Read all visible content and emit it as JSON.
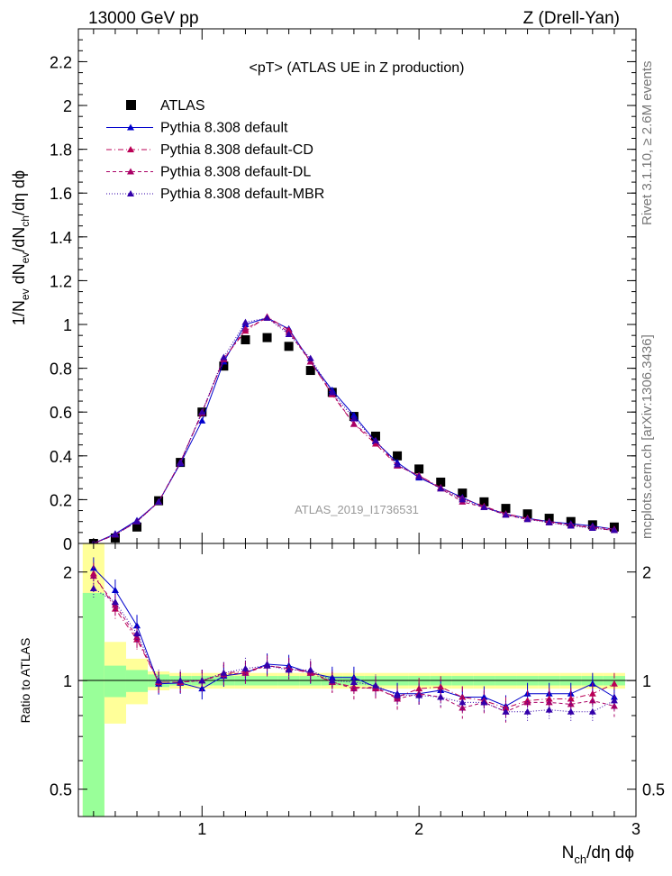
{
  "header": {
    "left": "13000 GeV pp",
    "right": "Z (Drell-Yan)"
  },
  "side_labels": {
    "top": "Rivet 3.1.10, ≥ 2.6M events",
    "bottom": "mcplots.cern.ch [arXiv:1306.3436]"
  },
  "chart_data": {
    "type": "scatter",
    "title": "<pT> (ATLAS UE in Z production)",
    "watermark": "ATLAS_2019_I1736531",
    "ylabel_main": "1/N_ev dN_ev/dN_ch/dη dϕ",
    "ylabel_ratio": "Ratio to ATLAS",
    "xlabel": "N_ch/dη dϕ",
    "xlim": [
      0.43,
      3.0
    ],
    "ylim_main": [
      0,
      2.35
    ],
    "ylim_ratio": [
      0.42,
      2.4
    ],
    "ratio_log_scale": true,
    "x_ticks": [
      "1",
      "2",
      "3"
    ],
    "y_ticks_main": [
      "0",
      "0.2",
      "0.4",
      "0.6",
      "0.8",
      "1",
      "1.2",
      "1.4",
      "1.6",
      "1.8",
      "2",
      "2.2"
    ],
    "y_ticks_ratio": [
      "0.5",
      "1",
      "2"
    ],
    "legend_position": "top-left",
    "x": [
      0.5,
      0.6,
      0.7,
      0.8,
      0.9,
      1.0,
      1.1,
      1.2,
      1.3,
      1.4,
      1.5,
      1.6,
      1.7,
      1.8,
      1.9,
      2.0,
      2.1,
      2.2,
      2.3,
      2.4,
      2.5,
      2.6,
      2.7,
      2.8,
      2.9
    ],
    "series": [
      {
        "name": "ATLAS",
        "color": "#000000",
        "marker": "square",
        "line": "none",
        "values": [
          0.0,
          0.025,
          0.075,
          0.195,
          0.37,
          0.6,
          0.81,
          0.93,
          0.94,
          0.9,
          0.79,
          0.69,
          0.58,
          0.49,
          0.4,
          0.34,
          0.28,
          0.23,
          0.19,
          0.16,
          0.135,
          0.115,
          0.1,
          0.085,
          0.075
        ]
      },
      {
        "name": "Pythia 8.308 default",
        "color": "#0000cc",
        "marker": "triangle",
        "line": "solid",
        "values": [
          0.0,
          0.044,
          0.105,
          0.19,
          0.365,
          0.56,
          0.83,
          1.0,
          1.03,
          0.98,
          0.83,
          0.7,
          0.585,
          0.465,
          0.37,
          0.3,
          0.255,
          0.21,
          0.165,
          0.135,
          0.115,
          0.1,
          0.09,
          0.08,
          0.065
        ]
      },
      {
        "name": "Pythia 8.308 default-CD",
        "color": "#bb0055",
        "marker": "triangle",
        "line": "dashdot",
        "values": [
          0.0,
          0.04,
          0.1,
          0.19,
          0.37,
          0.595,
          0.845,
          0.97,
          1.035,
          0.975,
          0.83,
          0.68,
          0.545,
          0.455,
          0.355,
          0.31,
          0.255,
          0.205,
          0.17,
          0.135,
          0.115,
          0.095,
          0.085,
          0.07,
          0.06
        ]
      },
      {
        "name": "Pythia 8.308 default-DL",
        "color": "#aa0066",
        "marker": "triangle",
        "line": "dashed",
        "values": [
          0.0,
          0.04,
          0.1,
          0.19,
          0.37,
          0.6,
          0.84,
          0.98,
          1.03,
          0.965,
          0.83,
          0.685,
          0.545,
          0.47,
          0.355,
          0.31,
          0.25,
          0.19,
          0.165,
          0.13,
          0.11,
          0.1,
          0.085,
          0.075,
          0.065
        ]
      },
      {
        "name": "Pythia 8.308 default-MBR",
        "color": "#3300aa",
        "marker": "triangle",
        "line": "dotted",
        "values": [
          0.0,
          0.04,
          0.1,
          0.19,
          0.37,
          0.6,
          0.85,
          1.01,
          1.03,
          0.955,
          0.845,
          0.69,
          0.57,
          0.47,
          0.36,
          0.305,
          0.25,
          0.2,
          0.165,
          0.13,
          0.11,
          0.095,
          0.08,
          0.07,
          0.06
        ]
      }
    ],
    "ratio_series": [
      {
        "name": "Pythia 8.308 default",
        "color": "#0000cc",
        "line": "solid",
        "values": [
          2.05,
          1.78,
          1.42,
          0.98,
          0.985,
          0.95,
          1.03,
          1.05,
          1.11,
          1.1,
          1.05,
          1.02,
          1.02,
          0.96,
          0.92,
          0.92,
          0.94,
          0.9,
          0.9,
          0.85,
          0.92,
          0.92,
          0.92,
          0.98,
          0.9
        ]
      },
      {
        "name": "Pythia 8.308 default-CD",
        "color": "#bb0055",
        "line": "dashdot",
        "values": [
          1.98,
          1.58,
          1.3,
          0.99,
          0.99,
          1.0,
          1.05,
          1.06,
          1.1,
          1.08,
          1.05,
          0.99,
          0.96,
          0.95,
          0.9,
          0.95,
          0.96,
          0.9,
          0.88,
          0.84,
          0.88,
          0.89,
          0.89,
          0.92,
          0.98
        ]
      },
      {
        "name": "Pythia 8.308 default-DL",
        "color": "#aa0066",
        "line": "dashed",
        "values": [
          1.95,
          1.62,
          1.32,
          0.99,
          0.99,
          1.0,
          1.04,
          1.05,
          1.1,
          1.08,
          1.06,
          0.99,
          0.95,
          0.96,
          0.89,
          0.92,
          0.9,
          0.84,
          0.87,
          0.82,
          0.87,
          0.87,
          0.86,
          0.88,
          0.85
        ]
      },
      {
        "name": "Pythia 8.308 default-MBR",
        "color": "#3300aa",
        "line": "dotted",
        "values": [
          1.8,
          1.65,
          1.35,
          1.0,
          1.0,
          1.0,
          1.05,
          1.08,
          1.1,
          1.07,
          1.07,
          1.0,
          0.99,
          0.97,
          0.91,
          0.91,
          0.9,
          0.87,
          0.87,
          0.82,
          0.82,
          0.83,
          0.82,
          0.82,
          0.88
        ]
      }
    ],
    "band_low": [
      0.42,
      0.9,
      0.93,
      0.96,
      0.97,
      0.97,
      0.97,
      0.97,
      0.97,
      0.97,
      0.97,
      0.97,
      0.97,
      0.97,
      0.97,
      0.97,
      0.97,
      0.97,
      0.97,
      0.97,
      0.97,
      0.97,
      0.97,
      0.97,
      0.97
    ],
    "band_high": [
      1.75,
      1.1,
      1.07,
      1.04,
      1.03,
      1.03,
      1.03,
      1.03,
      1.03,
      1.03,
      1.03,
      1.03,
      1.03,
      1.03,
      1.03,
      1.03,
      1.03,
      1.03,
      1.03,
      1.03,
      1.03,
      1.03,
      1.03,
      1.03,
      1.03
    ],
    "band_outer_low": [
      0.42,
      0.76,
      0.86,
      0.94,
      0.95,
      0.95,
      0.95,
      0.95,
      0.95,
      0.95,
      0.95,
      0.95,
      0.95,
      0.95,
      0.95,
      0.95,
      0.95,
      0.95,
      0.95,
      0.95,
      0.95,
      0.95,
      0.95,
      0.95,
      0.95
    ],
    "band_outer_high": [
      2.4,
      1.28,
      1.15,
      1.06,
      1.05,
      1.05,
      1.05,
      1.05,
      1.05,
      1.05,
      1.05,
      1.05,
      1.05,
      1.05,
      1.05,
      1.05,
      1.05,
      1.05,
      1.05,
      1.05,
      1.05,
      1.05,
      1.05,
      1.05,
      1.05
    ],
    "band_colors": {
      "inner": "#99ff99",
      "outer": "#ffff99"
    }
  }
}
